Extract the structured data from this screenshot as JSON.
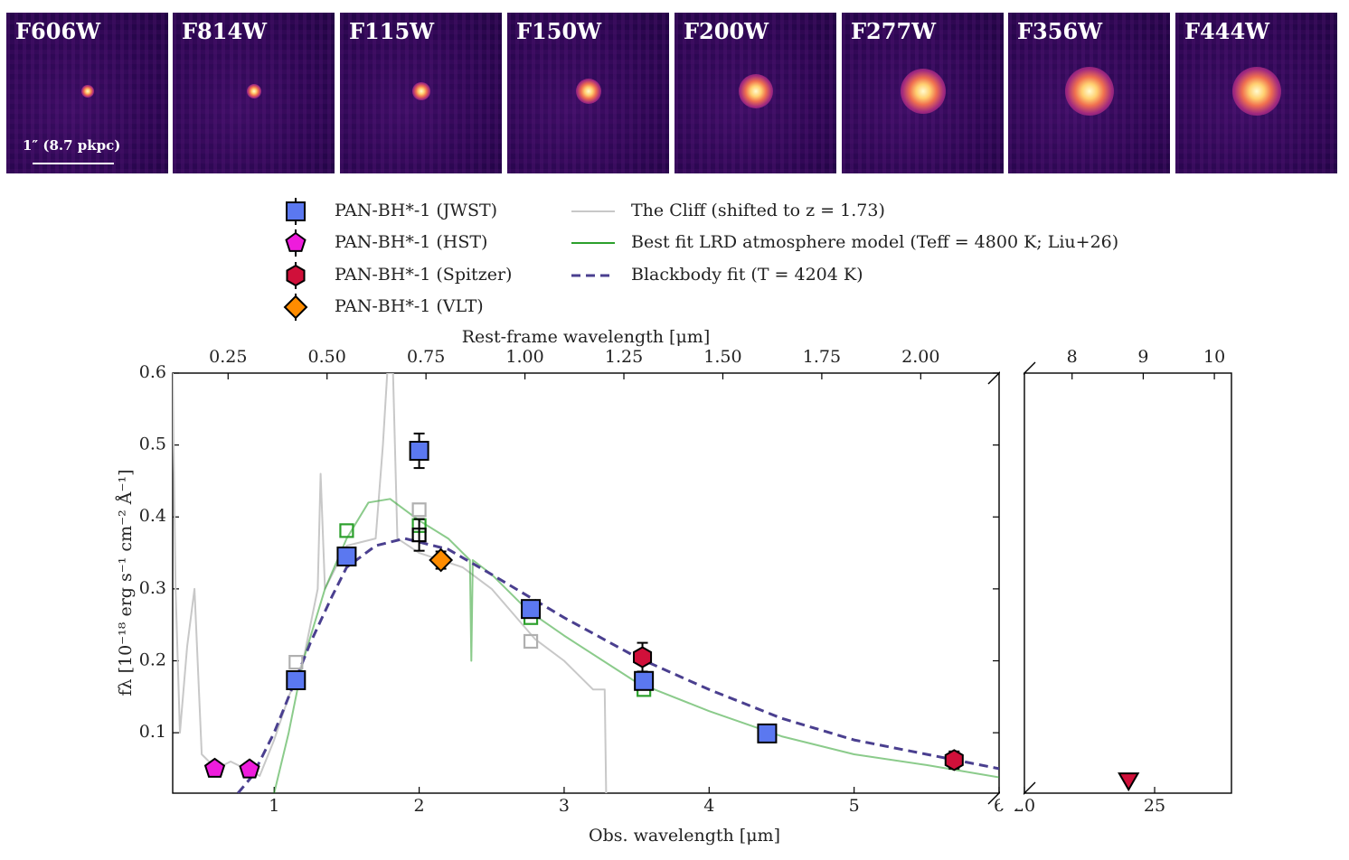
{
  "panels": {
    "filters": [
      "F606W",
      "F814W",
      "F115W",
      "F150W",
      "F200W",
      "F277W",
      "F356W",
      "F444W"
    ],
    "scale_bar": "1″ (8.7 pkpc)"
  },
  "chart_data": [
    {
      "type": "scatter",
      "xlabel": "Obs. wavelength [μm]",
      "x2label": "Rest-frame wavelength [μm]",
      "ylabel": "fλ [10⁻¹⁸ erg s⁻¹ cm⁻² Å⁻¹]",
      "xlim": [
        0.3,
        6
      ],
      "xticks": [
        1,
        2,
        3,
        4,
        5,
        6
      ],
      "x2lim": [
        0.11,
        2.198
      ],
      "x2ticks": [
        0.25,
        {
          "value": 0.5,
          "label": "0.50"
        },
        0.75,
        {
          "value": 1.0,
          "label": "1.00"
        },
        1.25,
        {
          "value": 1.5,
          "label": "1.50"
        },
        1.75,
        {
          "value": 2.0,
          "label": "2.00"
        }
      ],
      "ylim": [
        0.016,
        0.6
      ],
      "yticks": [
        0.1,
        0.2,
        0.3,
        0.4,
        0.5,
        0.6
      ],
      "series": [
        {
          "name": "PAN-BH*-1 (JWST)",
          "type": "scatter",
          "marker": "square",
          "color": "#5b78f0",
          "x": [
            1.15,
            1.5,
            2.0,
            2.77,
            3.55,
            4.4
          ],
          "values": [
            0.173,
            0.345,
            0.492,
            0.272,
            0.172,
            0.099
          ],
          "errors": [
            0.006,
            0.012,
            0.024,
            0.01,
            0.008,
            0.004
          ]
        },
        {
          "name": "PAN-BH*-1 (HST)",
          "type": "scatter",
          "marker": "pentagon",
          "color": "#ee1cdc",
          "x": [
            0.59,
            0.83
          ],
          "values": [
            0.05,
            0.049
          ],
          "errors": [
            0.004,
            0.004
          ]
        },
        {
          "name": "PAN-BH*-1 (Spitzer)",
          "type": "scatter",
          "marker": "hexagon",
          "color": "#d0103a",
          "x": [
            3.54,
            5.69
          ],
          "values": [
            0.205,
            0.062
          ],
          "errors": [
            0.02,
            0.012
          ]
        },
        {
          "name": "PAN-BH*-1 (VLT)",
          "type": "scatter",
          "marker": "diamond",
          "color": "#ff8c00",
          "x": [
            2.15
          ],
          "values": [
            0.34
          ],
          "errors": [
            0.012
          ]
        },
        {
          "name": "The Cliff (shifted to z = 1.73)",
          "type": "line",
          "color": "#c8c8c8",
          "alpha": 1,
          "x": [
            0.3,
            0.32,
            0.35,
            0.4,
            0.45,
            0.5,
            0.6,
            0.7,
            0.8,
            0.9,
            1.0,
            1.1,
            1.2,
            1.3,
            1.32,
            1.35,
            1.5,
            1.7,
            1.75,
            1.78,
            1.82,
            1.85,
            2.0,
            2.3,
            2.5,
            2.8,
            3.0,
            3.2,
            3.28,
            3.29
          ],
          "values": [
            0.6,
            0.3,
            0.1,
            0.22,
            0.3,
            0.07,
            0.05,
            0.06,
            0.05,
            0.04,
            0.09,
            0.15,
            0.2,
            0.3,
            0.46,
            0.3,
            0.36,
            0.37,
            0.5,
            0.6,
            0.6,
            0.37,
            0.35,
            0.33,
            0.3,
            0.23,
            0.2,
            0.16,
            0.16,
            0.016
          ]
        },
        {
          "name": "Best fit LRD atmosphere model (Teff = 4800 K; Liu+26)",
          "type": "line",
          "color": "#2ca02c",
          "alpha": 0.55,
          "x": [
            1.0,
            1.1,
            1.2,
            1.35,
            1.5,
            1.65,
            1.8,
            1.9,
            2.0,
            2.2,
            2.35,
            2.36,
            2.37,
            2.5,
            2.75,
            3.0,
            3.5,
            4.0,
            4.5,
            5.0,
            5.5,
            6.0
          ],
          "values": [
            0.016,
            0.1,
            0.2,
            0.3,
            0.37,
            0.42,
            0.425,
            0.41,
            0.395,
            0.37,
            0.34,
            0.2,
            0.34,
            0.32,
            0.27,
            0.235,
            0.17,
            0.13,
            0.095,
            0.07,
            0.055,
            0.038
          ]
        },
        {
          "name": "Blackbody fit (T = 4204 K)",
          "type": "line",
          "color": "#4a3f8f",
          "alpha": 1,
          "dashed": true,
          "x": [
            0.75,
            0.85,
            1.0,
            1.1,
            1.25,
            1.4,
            1.5,
            1.7,
            1.9,
            2.2,
            2.5,
            3.0,
            3.5,
            4.0,
            4.5,
            5.0,
            5.5,
            6.0
          ],
          "values": [
            0.016,
            0.04,
            0.1,
            0.15,
            0.225,
            0.29,
            0.33,
            0.36,
            0.37,
            0.355,
            0.32,
            0.26,
            0.205,
            0.16,
            0.12,
            0.09,
            0.07,
            0.05
          ]
        },
        {
          "type": "scatter",
          "marker": "open-square",
          "color": "#2ca02c",
          "x": [
            1.5,
            2.0,
            2.77,
            3.55
          ],
          "values": [
            0.381,
            0.388,
            0.26,
            0.16
          ]
        },
        {
          "type": "scatter",
          "marker": "open-square",
          "color": "#b0b0b0",
          "x": [
            1.15,
            2.0,
            2.77
          ],
          "values": [
            0.198,
            0.41,
            0.227
          ]
        },
        {
          "type": "scatter",
          "marker": "open-square",
          "color": "#000000",
          "x": [
            2.0
          ],
          "values": [
            0.375
          ],
          "errors": [
            0.022
          ]
        }
      ]
    },
    {
      "type": "scatter",
      "xlim": [
        20,
        27.95
      ],
      "xticks": [
        20,
        25
      ],
      "x2lim": [
        7.33,
        10.24
      ],
      "x2ticks": [
        8,
        9,
        10
      ],
      "ylim": [
        0.016,
        0.6
      ],
      "series": [
        {
          "type": "scatter",
          "marker": "triangle-down",
          "color": "#d0103a",
          "x": [
            24.0
          ],
          "values": [
            0.036
          ]
        }
      ]
    }
  ]
}
